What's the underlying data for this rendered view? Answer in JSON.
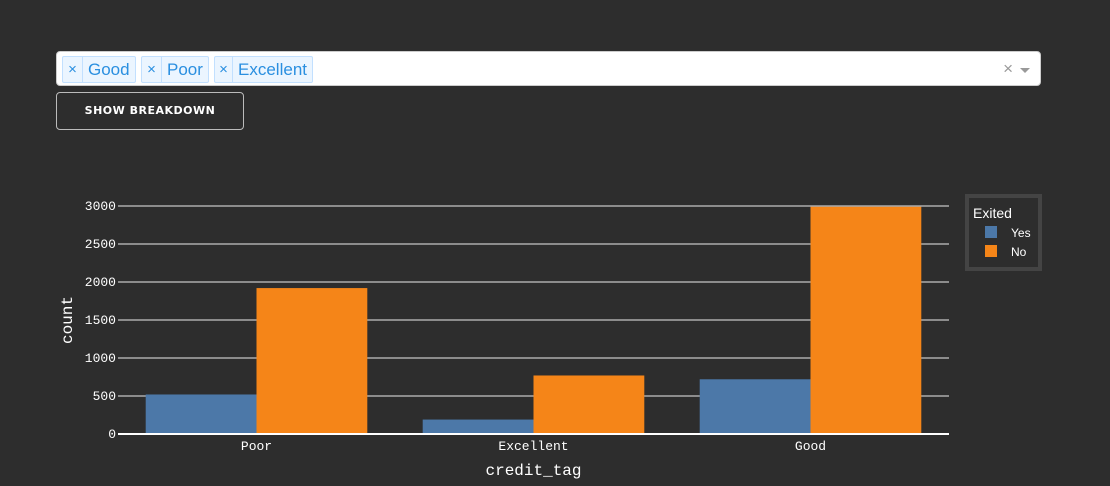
{
  "filter": {
    "tags": [
      {
        "label": "Good"
      },
      {
        "label": "Poor"
      },
      {
        "label": "Excellent"
      }
    ],
    "remove_glyph": "×",
    "clear_glyph": "×"
  },
  "controls": {
    "breakdown_label": "SHOW BREAKDOWN"
  },
  "chart_data": {
    "type": "bar",
    "categories": [
      "Poor",
      "Excellent",
      "Good"
    ],
    "series": [
      {
        "name": "Yes",
        "values": [
          520,
          190,
          720
        ],
        "color": "#4c78a8"
      },
      {
        "name": "No",
        "values": [
          1920,
          770,
          2990
        ],
        "color": "#f58518"
      }
    ],
    "xlabel": "credit_tag",
    "ylabel": "count",
    "ylim": [
      0,
      3000
    ],
    "yticks": [
      0,
      500,
      1000,
      1500,
      2000,
      2500,
      3000
    ],
    "legend": {
      "title": "Exited",
      "position": "top-right"
    },
    "grid": true
  }
}
